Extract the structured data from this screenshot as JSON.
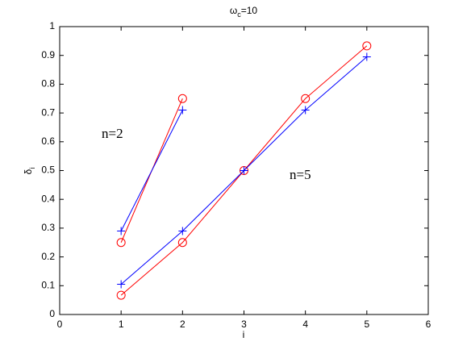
{
  "chart_data": {
    "type": "line",
    "title": [
      {
        "text": "ω"
      },
      {
        "text": "c",
        "sub": true
      },
      {
        "text": "=10"
      }
    ],
    "x_label": [
      {
        "text": "i"
      }
    ],
    "y_label": [
      {
        "text": "δ"
      },
      {
        "text": "i",
        "sub": true
      }
    ],
    "annotations": [
      "n=2",
      "n=5"
    ],
    "series": [
      {
        "color": "#ff0000",
        "marker": "o",
        "x": [
          1,
          2
        ],
        "values": [
          0.25,
          0.75
        ]
      },
      {
        "color": "#0000ff",
        "marker": "+",
        "x": [
          1,
          2
        ],
        "values": [
          0.29,
          0.71
        ]
      },
      {
        "color": "#ff0000",
        "marker": "o",
        "x": [
          1,
          2,
          3,
          4,
          5
        ],
        "values": [
          0.067,
          0.25,
          0.5,
          0.75,
          0.933
        ]
      },
      {
        "color": "#0000ff",
        "marker": "+",
        "x": [
          1,
          2,
          3,
          4,
          5
        ],
        "values": [
          0.105,
          0.29,
          0.5,
          0.71,
          0.895
        ]
      }
    ],
    "xlim": [
      0,
      6
    ],
    "xticks": [
      0,
      1,
      2,
      3,
      4,
      5,
      6
    ],
    "ylim": [
      0,
      1
    ],
    "yticks": [
      0,
      0.1,
      0.2,
      0.3,
      0.4,
      0.5,
      0.6,
      0.7,
      0.8,
      0.9,
      1
    ],
    "grid": false
  }
}
